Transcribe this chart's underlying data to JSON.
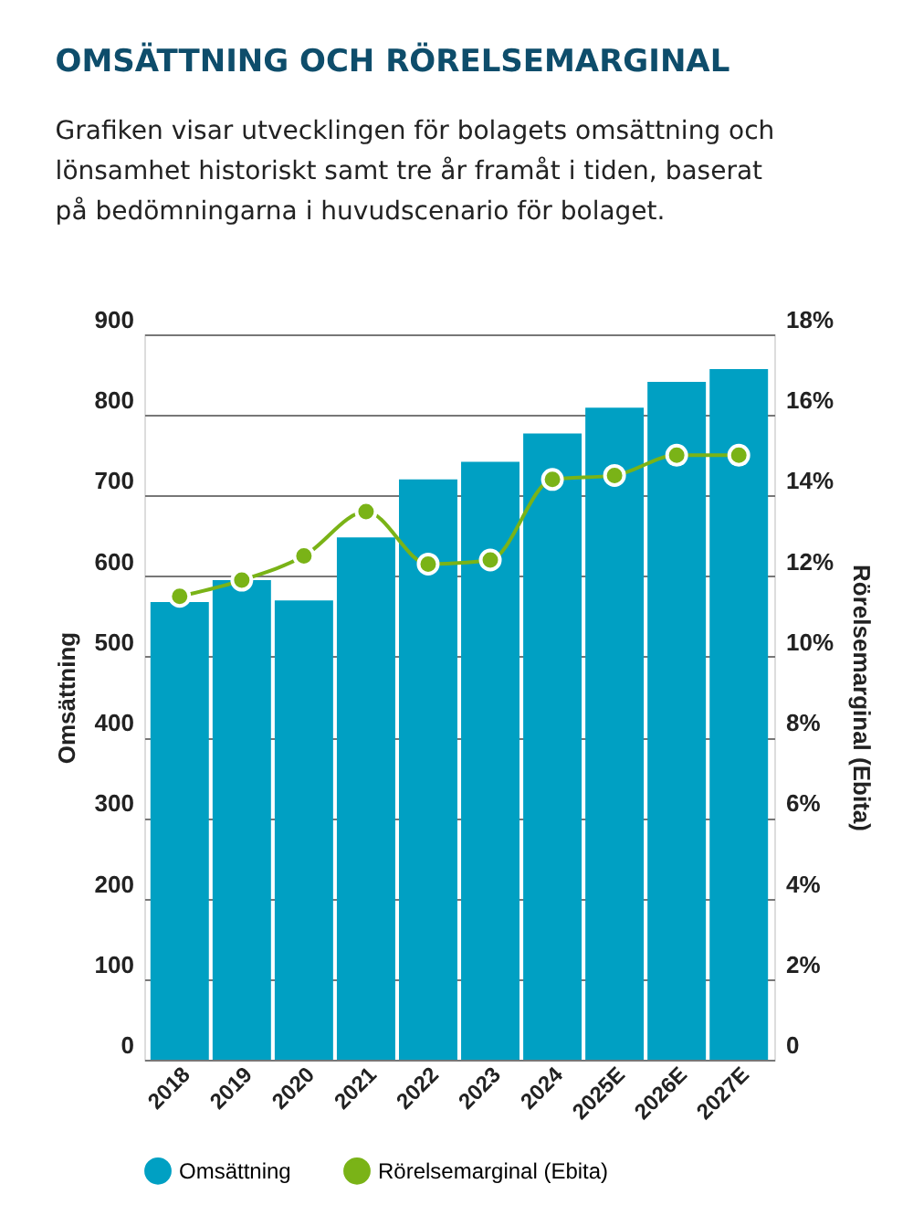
{
  "chart_data": {
    "type": "bar",
    "title": "OMSÄTTNING OCH RÖRELSEMARGINAL",
    "subtitle": "Grafiken visar utvecklingen för bolagets omsättning och lönsamhet historiskt samt tre år framåt i tiden, baserat på bedömningarna i huvudscenario för bolaget.",
    "categories": [
      "2018",
      "2019",
      "2020",
      "2021",
      "2022",
      "2023",
      "2024",
      "2025E",
      "2026E",
      "2027E"
    ],
    "ylabel": "Omsättning",
    "y2label": "Rörelsemarginal (Ebita)",
    "ylim": [
      0,
      900
    ],
    "yticks": [
      0,
      100,
      200,
      300,
      400,
      500,
      600,
      700,
      800,
      900
    ],
    "y2lim": [
      0,
      18
    ],
    "y2ticks": [
      {
        "value": 0,
        "label": "0"
      },
      {
        "value": 2,
        "label": "2%"
      },
      {
        "value": 4,
        "label": "4%"
      },
      {
        "value": 6,
        "label": "6%"
      },
      {
        "value": 8,
        "label": "8%"
      },
      {
        "value": 10,
        "label": "10%"
      },
      {
        "value": 12,
        "label": "12%"
      },
      {
        "value": 14,
        "label": "14%"
      },
      {
        "value": 16,
        "label": "16%"
      },
      {
        "value": 18,
        "label": "18%"
      }
    ],
    "series": [
      {
        "name": "Omsättning",
        "color": "#00a0c3",
        "values": [
          568,
          595,
          570,
          648,
          720,
          742,
          777,
          809,
          841,
          857
        ]
      },
      {
        "name": "Rörelsemarginal (Ebita)",
        "type": "line",
        "axis": "y2",
        "color": "#7ab317",
        "marker": "circle",
        "values": [
          11.5,
          11.9,
          12.5,
          13.6,
          12.3,
          12.4,
          14.4,
          14.5,
          15.0,
          15.0
        ]
      }
    ],
    "grid": "y",
    "legend": "bottom"
  }
}
